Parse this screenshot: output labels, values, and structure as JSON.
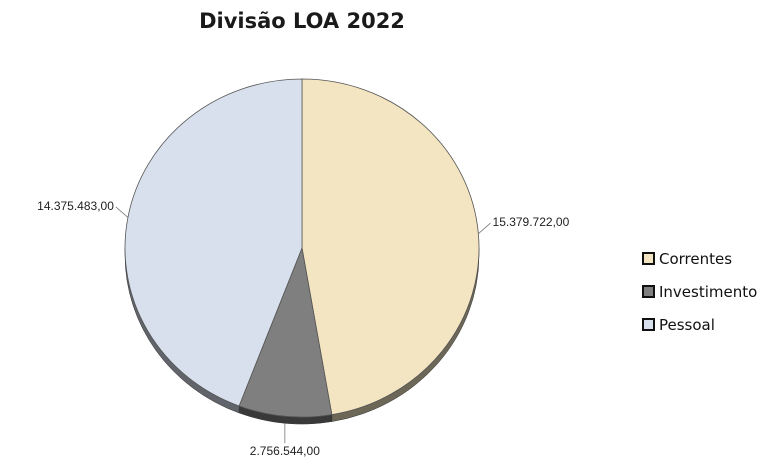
{
  "chart_data": {
    "type": "pie",
    "title": "Divisão LOA 2022",
    "start_angle_deg": 0,
    "direction": "clockwise",
    "legend_position": "right",
    "slices": [
      {
        "name": "Correntes",
        "value": 15379722.0,
        "label": "15.379.722,00",
        "color": "#f3e4c2"
      },
      {
        "name": "Investimento",
        "value": 2756544.0,
        "label": "2.756.544,00",
        "color": "#7f7f7f"
      },
      {
        "name": "Pessoal",
        "value": 14375483.0,
        "label": "14.375.483,00",
        "color": "#d8e0ed"
      }
    ]
  }
}
